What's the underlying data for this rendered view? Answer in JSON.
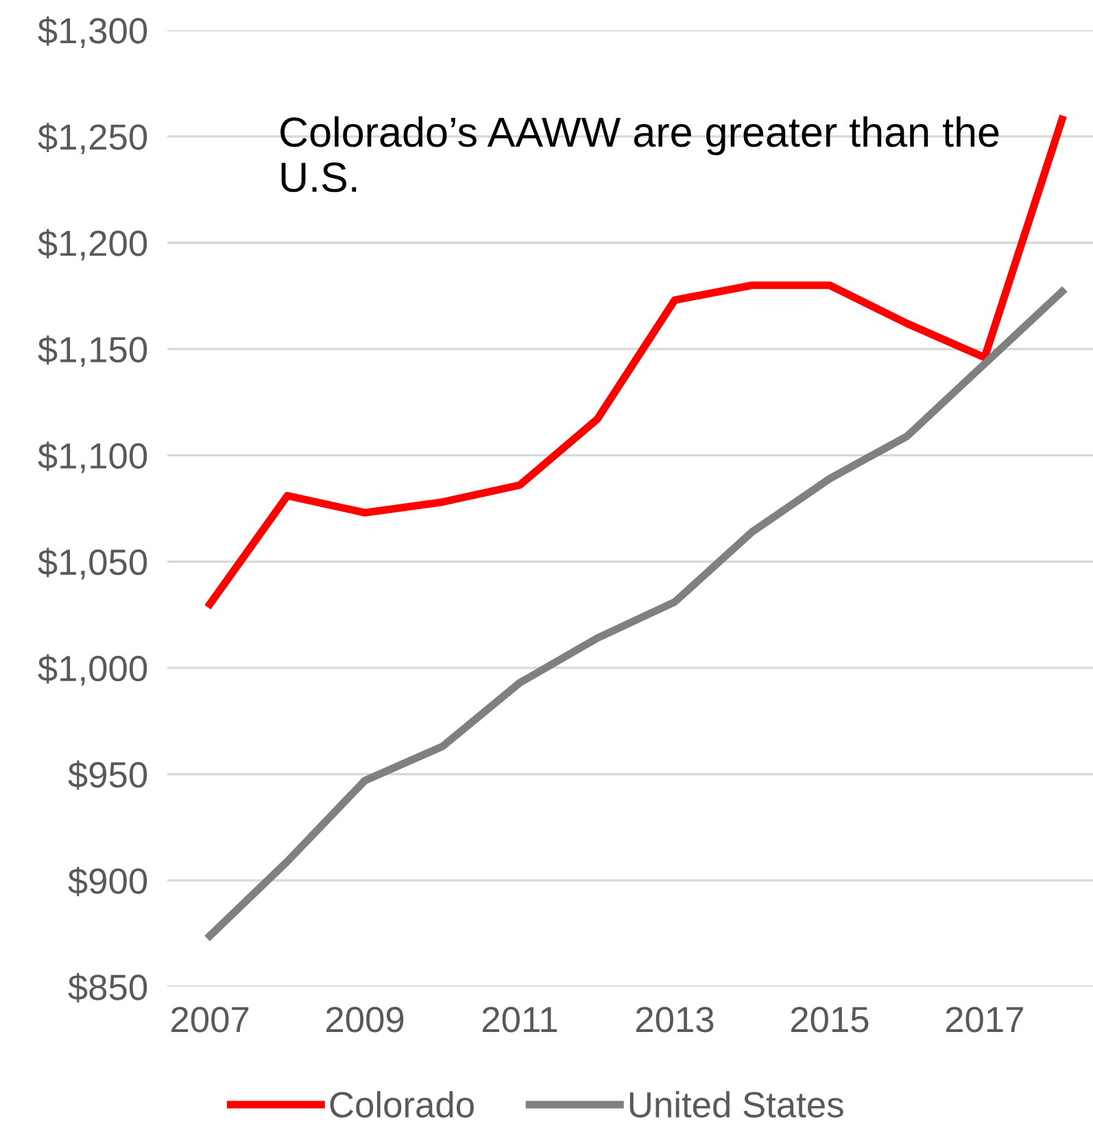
{
  "chart_data": {
    "type": "line",
    "x": [
      2007,
      2008,
      2009,
      2010,
      2011,
      2012,
      2013,
      2014,
      2015,
      2016,
      2017,
      2018
    ],
    "series": [
      {
        "name": "Colorado",
        "color": "#ff0000",
        "values": [
          1030,
          1081,
          1073,
          1078,
          1086,
          1117,
          1173,
          1180,
          1180,
          1162,
          1146,
          1258
        ]
      },
      {
        "name": "United States",
        "color": "#808080",
        "values": [
          874,
          909,
          947,
          963,
          993,
          1014,
          1031,
          1064,
          1089,
          1109,
          1143,
          1177
        ]
      }
    ],
    "xlim": [
      2006.45,
      2018.4
    ],
    "xticks": [
      2007,
      2009,
      2011,
      2013,
      2015,
      2017
    ],
    "ylim": [
      850,
      1300
    ],
    "yticks": [
      {
        "value": 850,
        "label": "$850"
      },
      {
        "value": 900,
        "label": "$900"
      },
      {
        "value": 950,
        "label": "$950"
      },
      {
        "value": 1000,
        "label": "$1,000"
      },
      {
        "value": 1050,
        "label": "$1,050"
      },
      {
        "value": 1100,
        "label": "$1,100"
      },
      {
        "value": 1150,
        "label": "$1,150"
      },
      {
        "value": 1200,
        "label": "$1,200"
      },
      {
        "value": 1250,
        "label": "$1,250"
      },
      {
        "value": 1300,
        "label": "$1,300"
      }
    ],
    "grid": "y",
    "legend": "bottom",
    "marker": "none",
    "line_style": "solid",
    "annotations": [
      "Colorado’s AAWW are greater than the U.S."
    ]
  }
}
